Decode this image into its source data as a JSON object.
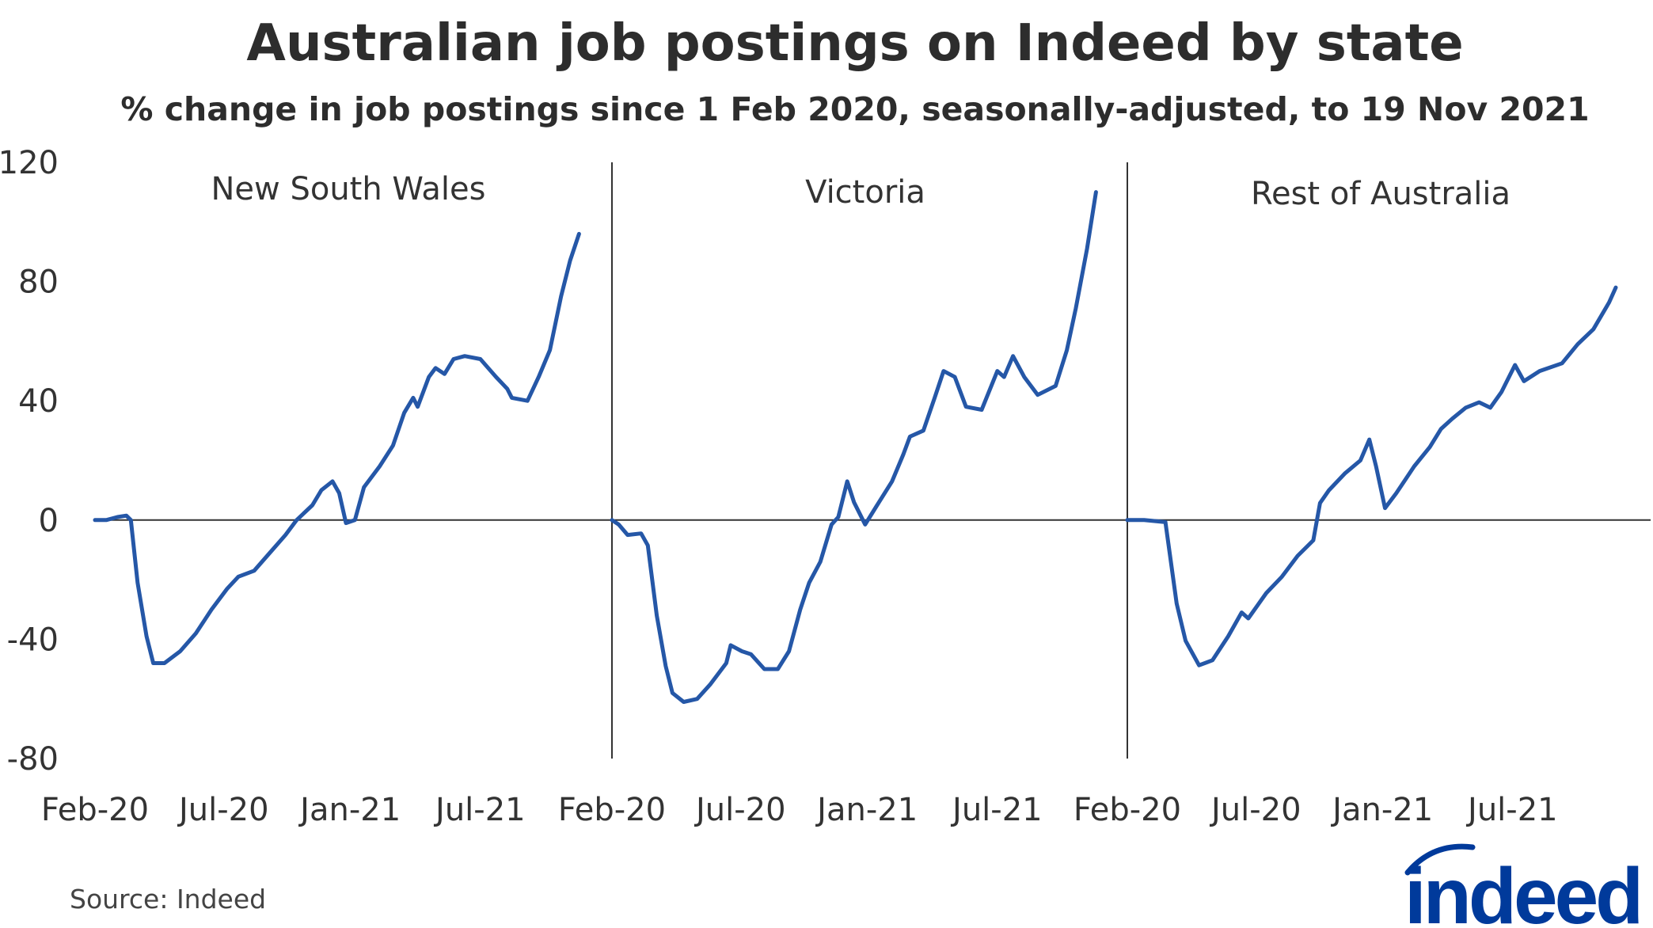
{
  "chart_data": {
    "type": "line",
    "title": "Australian job postings on Indeed by state",
    "subtitle": "% change in job postings since 1 Feb 2020, seasonally-adjusted, to 19 Nov 2021",
    "ylabel": "",
    "xlabel": "",
    "ylim": [
      -80,
      120
    ],
    "yticks": [
      120,
      80,
      40,
      0,
      -40,
      -80
    ],
    "xlim_months": [
      0,
      23
    ],
    "xticks": [
      {
        "label": "Feb-20",
        "x": 0
      },
      {
        "label": "Jul-20",
        "x": 5.75
      },
      {
        "label": "Jan-21",
        "x": 11.4
      },
      {
        "label": "Jul-21",
        "x": 17.2
      }
    ],
    "x_unit": "months since 1 Feb 2020",
    "grid": false,
    "line_color": "#2557a7",
    "panels": [
      {
        "name": "New South Wales",
        "points": [
          [
            0,
            0
          ],
          [
            0.5,
            0
          ],
          [
            1,
            1
          ],
          [
            1.4,
            1.5
          ],
          [
            1.6,
            0
          ],
          [
            1.9,
            -21
          ],
          [
            2.3,
            -39
          ],
          [
            2.6,
            -48
          ],
          [
            3.1,
            -48
          ],
          [
            3.8,
            -44
          ],
          [
            4.5,
            -38
          ],
          [
            5.2,
            -30
          ],
          [
            5.9,
            -23
          ],
          [
            6.4,
            -19
          ],
          [
            7.1,
            -17
          ],
          [
            7.8,
            -11
          ],
          [
            8.5,
            -5
          ],
          [
            9,
            0
          ],
          [
            9.7,
            5
          ],
          [
            10.1,
            10
          ],
          [
            10.6,
            13
          ],
          [
            10.9,
            9
          ],
          [
            11.2,
            -1
          ],
          [
            11.6,
            0
          ],
          [
            12,
            11
          ],
          [
            12.7,
            18
          ],
          [
            13.3,
            25
          ],
          [
            13.8,
            36
          ],
          [
            14.2,
            41
          ],
          [
            14.4,
            38
          ],
          [
            14.9,
            48
          ],
          [
            15.2,
            51
          ],
          [
            15.6,
            49
          ],
          [
            16,
            54
          ],
          [
            16.5,
            55
          ],
          [
            17.2,
            54
          ],
          [
            17.9,
            48
          ],
          [
            18.4,
            44
          ],
          [
            18.6,
            41
          ],
          [
            19.3,
            40
          ],
          [
            19.8,
            48
          ],
          [
            20.3,
            57
          ],
          [
            20.8,
            75
          ],
          [
            21.2,
            87
          ],
          [
            21.6,
            96
          ]
        ]
      },
      {
        "name": "Victoria",
        "points": [
          [
            0,
            0
          ],
          [
            0.3,
            -1.5
          ],
          [
            0.7,
            -5
          ],
          [
            1.3,
            -4.5
          ],
          [
            1.6,
            -8.5
          ],
          [
            2,
            -32
          ],
          [
            2.4,
            -49
          ],
          [
            2.7,
            -58
          ],
          [
            3.2,
            -61
          ],
          [
            3.8,
            -60
          ],
          [
            4.4,
            -55
          ],
          [
            5.1,
            -48
          ],
          [
            5.3,
            -42
          ],
          [
            5.8,
            -44
          ],
          [
            6.2,
            -45
          ],
          [
            6.8,
            -50
          ],
          [
            7.4,
            -50
          ],
          [
            7.9,
            -44
          ],
          [
            8.4,
            -30
          ],
          [
            8.8,
            -21
          ],
          [
            9.3,
            -14
          ],
          [
            9.8,
            -1.5
          ],
          [
            10.1,
            1
          ],
          [
            10.5,
            13
          ],
          [
            10.8,
            6
          ],
          [
            11.3,
            -1.5
          ],
          [
            11.8,
            4.6
          ],
          [
            12.5,
            13
          ],
          [
            13,
            22
          ],
          [
            13.3,
            28
          ],
          [
            13.9,
            30
          ],
          [
            14.4,
            41
          ],
          [
            14.8,
            50
          ],
          [
            15.3,
            48
          ],
          [
            15.8,
            38
          ],
          [
            16.5,
            37
          ],
          [
            17.2,
            50
          ],
          [
            17.5,
            48
          ],
          [
            17.9,
            55
          ],
          [
            18.4,
            48
          ],
          [
            19,
            42
          ],
          [
            19.8,
            45
          ],
          [
            20.3,
            57
          ],
          [
            20.7,
            71
          ],
          [
            21.2,
            91
          ],
          [
            21.6,
            110
          ]
        ]
      },
      {
        "name": "Rest of Australia",
        "points": [
          [
            0,
            0
          ],
          [
            0.75,
            0
          ],
          [
            1.7,
            -0.7
          ],
          [
            2.2,
            -28
          ],
          [
            2.6,
            -40.5
          ],
          [
            3.2,
            -48.7
          ],
          [
            3.8,
            -47
          ],
          [
            4.5,
            -39
          ],
          [
            5.1,
            -31
          ],
          [
            5.4,
            -33
          ],
          [
            6.2,
            -24.5
          ],
          [
            6.9,
            -19
          ],
          [
            7.6,
            -12
          ],
          [
            8.3,
            -6.8
          ],
          [
            8.6,
            5.7
          ],
          [
            9,
            10
          ],
          [
            9.7,
            15.6
          ],
          [
            10.4,
            20
          ],
          [
            10.8,
            27
          ],
          [
            11.1,
            18
          ],
          [
            11.5,
            4
          ],
          [
            12,
            9
          ],
          [
            12.8,
            18
          ],
          [
            13.5,
            24.5
          ],
          [
            14,
            30.6
          ],
          [
            14.5,
            34
          ],
          [
            15.1,
            37.7
          ],
          [
            15.7,
            39.5
          ],
          [
            16.2,
            37.7
          ],
          [
            16.7,
            43
          ],
          [
            17.3,
            52
          ],
          [
            17.7,
            46.6
          ],
          [
            18.4,
            50
          ],
          [
            19.4,
            52.6
          ],
          [
            20.1,
            59
          ],
          [
            20.8,
            64
          ],
          [
            21.5,
            73
          ],
          [
            21.8,
            78
          ]
        ]
      }
    ]
  },
  "footer": {
    "source": "Source: Indeed",
    "logo_text": "indeed",
    "logo_color": "#003a9b"
  }
}
